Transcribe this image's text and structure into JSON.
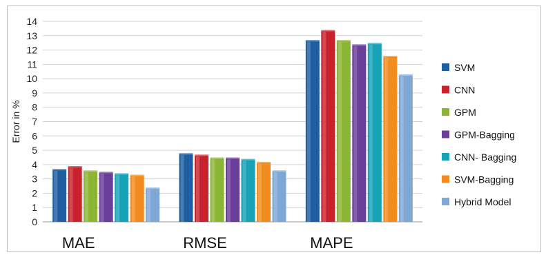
{
  "chart_data": {
    "type": "bar",
    "ylabel": "Error in %",
    "xlabel": "",
    "ylim": [
      0,
      14
    ],
    "yticks": [
      0,
      1,
      2,
      3,
      4,
      5,
      6,
      7,
      8,
      9,
      10,
      11,
      12,
      13,
      14
    ],
    "grid": true,
    "legend_position": "right",
    "categories": [
      "MAE",
      "RMSE",
      "MAPE"
    ],
    "series": [
      {
        "name": "SVM",
        "color": "#1f5fa0",
        "values": [
          3.6,
          4.7,
          12.6
        ]
      },
      {
        "name": "CNN",
        "color": "#c8232c",
        "values": [
          3.8,
          4.6,
          13.3
        ]
      },
      {
        "name": "GPM",
        "color": "#8db534",
        "values": [
          3.5,
          4.4,
          12.6
        ]
      },
      {
        "name": "GPM-Bagging",
        "color": "#6a3d9a",
        "values": [
          3.4,
          4.4,
          12.3
        ]
      },
      {
        "name": "CNN- Bagging",
        "color": "#17a2b8",
        "values": [
          3.3,
          4.3,
          12.4
        ]
      },
      {
        "name": "SVM-Bagging",
        "color": "#f28c1e",
        "values": [
          3.2,
          4.1,
          11.5
        ]
      },
      {
        "name": "Hybrid Model",
        "color": "#7fa7d6",
        "values": [
          2.3,
          3.5,
          10.2
        ]
      }
    ]
  }
}
